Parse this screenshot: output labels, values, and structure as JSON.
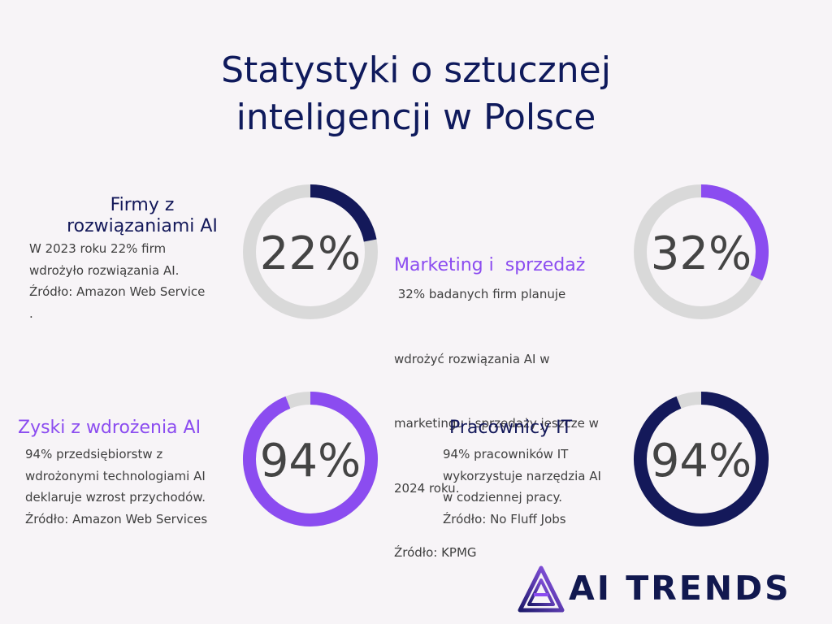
{
  "title": {
    "line1": "Statystyki o sztucznej",
    "line2": "inteligencji w Polsce"
  },
  "colors": {
    "navy": "#14195a",
    "purple": "#8b4cf0",
    "track": "#d9d9d9",
    "background": "#f7f4f7"
  },
  "chart_data": [
    {
      "type": "pie",
      "value": 22,
      "unit": "%",
      "label": "22%",
      "heading": [
        "Firmy z",
        "rozwiązaniami AI"
      ],
      "body": [
        "W 2023 roku 22% firm",
        "wdrożyło  rozwiązania AI.",
        "Źródło: Amazon Web Service",
        "."
      ],
      "color": "#14195a"
    },
    {
      "type": "pie",
      "value": 32,
      "unit": "%",
      "label": "32%",
      "heading": [
        "Marketing i  sprzedaż"
      ],
      "body": [
        " 32% badanych firm planuje",
        "wdrożyć rozwiązania AI w",
        "marketingu i sprzedaży jeszcze w",
        "2024 roku.",
        "Źródło: KPMG"
      ],
      "color": "#8b4cf0"
    },
    {
      "type": "pie",
      "value": 94,
      "unit": "%",
      "label": "94%",
      "heading": [
        "Zyski z wdrożenia AI"
      ],
      "body": [
        "94% przedsiębiorstw z",
        "wdrożonymi technologiami AI",
        "deklaruje wzrost przychodów.",
        "Źródło: Amazon Web Services"
      ],
      "color": "#8b4cf0"
    },
    {
      "type": "pie",
      "value": 94,
      "unit": "%",
      "label": "94%",
      "heading": [
        "Pracownicy IT"
      ],
      "body": [
        "94% pracowników IT",
        "wykorzystuje narzędzia AI",
        "w codziennej pracy.",
        "Źródło: No Fluff Jobs"
      ],
      "color": "#14195a"
    }
  ],
  "logo": {
    "text": "AI TRENDS",
    "icon": "ai-trends-logo-icon"
  }
}
